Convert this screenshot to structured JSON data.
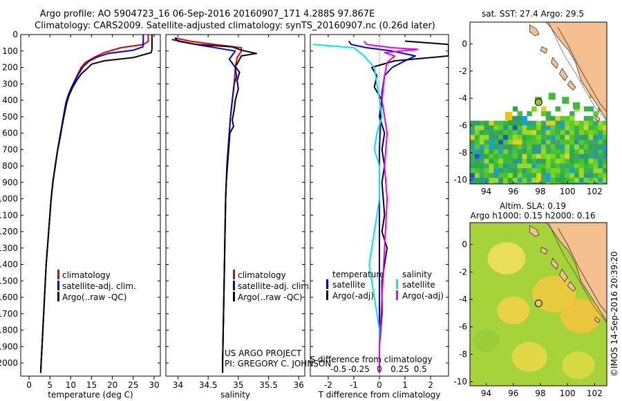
{
  "header": {
    "line1": "Argo profile: AO 5904723_16 06-Sep-2016 20160907_171 4.288S 97.867E",
    "line2": "Climatology: CARS2009. Satellite-adjusted climatology: synTS_20160907.nc (0.26d later)"
  },
  "colors": {
    "climatology": "#e00000",
    "satellite": "#0000dd",
    "argo": "#000000",
    "satellite_diff_s": "#00e5ee",
    "argo_diff_s": "#ee00ee",
    "land": "#f4c08f",
    "sla_field": "#b6dc3a"
  },
  "legends": {
    "temp": [
      "climatology",
      "satellite-adj. clim.",
      "Argo(..raw -QC)"
    ],
    "sal": [
      "climatology",
      "satellite-adj. clim.",
      "Argo(..raw -QC)"
    ],
    "diff_temperature_header": "temperature",
    "diff_salinity_header": "salinity",
    "diff_t": [
      "satellite",
      "Argo(-adj)"
    ],
    "diff_s": [
      "satellite",
      "Argo(-adj)"
    ]
  },
  "credit": {
    "line1": "US ARGO PROJECT",
    "line2": "PI: GREGORY C. JOHNSON"
  },
  "maps": {
    "sst_title": "sat. SST: 27.4 Argo: 29.5",
    "sla_title1": "Altim. SLA: 0.19",
    "sla_title2": "Argo h1000: 0.15 h2000: 0.16",
    "x_ticks": [
      "94",
      "96",
      "98",
      "100",
      "102"
    ],
    "y_ticks": [
      "0",
      "-2",
      "-4",
      "-6",
      "-8",
      "-10"
    ],
    "x_range": [
      92.8,
      102.9
    ],
    "y_range": [
      -10.3,
      1.6
    ],
    "float_position": {
      "lon": 97.867,
      "lat": -4.288
    }
  },
  "watermark": "©IMOS 14-Sep-2016 20:39:20",
  "chart_data": [
    {
      "type": "line",
      "name": "temperature_profile",
      "xlabel": "temperature (deg C)",
      "ylabel": "",
      "xlim": [
        -2,
        31.5
      ],
      "ylim": [
        2080,
        0
      ],
      "x_ticks": [
        0,
        5,
        10,
        15,
        20,
        25,
        30
      ],
      "y_ticks": [
        0,
        100,
        200,
        300,
        400,
        500,
        600,
        700,
        800,
        900,
        1000,
        1100,
        1200,
        1300,
        1400,
        1500,
        1600,
        1700,
        1800,
        1900,
        2000
      ],
      "series": [
        {
          "name": "climatology",
          "color": "#e00000",
          "points": [
            [
              28.6,
              0
            ],
            [
              28.6,
              40
            ],
            [
              27.5,
              60
            ],
            [
              22,
              80
            ],
            [
              18,
              110
            ],
            [
              15.5,
              140
            ],
            [
              13.5,
              170
            ],
            [
              12.5,
              200
            ],
            [
              11.5,
              250
            ],
            [
              10.6,
              300
            ],
            [
              9.7,
              350
            ],
            [
              9,
              400
            ],
            [
              8.3,
              500
            ],
            [
              7.6,
              600
            ],
            [
              6.9,
              700
            ],
            [
              6.3,
              800
            ],
            [
              5.7,
              900
            ],
            [
              5.3,
              1000
            ],
            [
              5,
              1100
            ],
            [
              4.7,
              1200
            ],
            [
              4.4,
              1300
            ],
            [
              4.1,
              1400
            ],
            [
              3.9,
              1500
            ],
            [
              3.7,
              1600
            ],
            [
              3.5,
              1700
            ],
            [
              3.3,
              1800
            ],
            [
              3.1,
              1900
            ],
            [
              2.9,
              2000
            ],
            [
              2.8,
              2060
            ]
          ]
        },
        {
          "name": "satellite-adj. clim.",
          "color": "#0000dd",
          "points": [
            [
              27.4,
              0
            ],
            [
              27.4,
              40
            ],
            [
              27.3,
              75
            ],
            [
              25,
              95
            ],
            [
              19,
              115
            ],
            [
              16.5,
              135
            ],
            [
              14.5,
              160
            ],
            [
              13,
              195
            ],
            [
              12,
              235
            ],
            [
              11,
              280
            ],
            [
              10.2,
              320
            ],
            [
              9.4,
              370
            ],
            [
              8.8,
              420
            ],
            [
              8.1,
              520
            ],
            [
              7.4,
              620
            ],
            [
              6.8,
              710
            ],
            [
              6.2,
              810
            ],
            [
              5.7,
              910
            ],
            [
              5.3,
              1000
            ],
            [
              5,
              1100
            ],
            [
              4.7,
              1200
            ],
            [
              4.4,
              1300
            ],
            [
              4.1,
              1400
            ],
            [
              3.9,
              1500
            ],
            [
              3.7,
              1600
            ],
            [
              3.5,
              1700
            ],
            [
              3.3,
              1800
            ],
            [
              3.1,
              1900
            ],
            [
              2.9,
              2000
            ],
            [
              2.8,
              2060
            ]
          ]
        },
        {
          "name": "Argo(..raw -QC)",
          "color": "#000000",
          "points": [
            [
              29.5,
              0
            ],
            [
              29.5,
              90
            ],
            [
              29.3,
              110
            ],
            [
              25,
              140
            ],
            [
              18,
              160
            ],
            [
              15,
              180
            ],
            [
              13.8,
              210
            ],
            [
              12.5,
              240
            ],
            [
              11.4,
              280
            ],
            [
              10.5,
              320
            ],
            [
              9.6,
              370
            ],
            [
              9,
              420
            ],
            [
              8.2,
              520
            ],
            [
              7.5,
              620
            ],
            [
              6.8,
              710
            ],
            [
              6.3,
              800
            ],
            [
              5.7,
              900
            ],
            [
              5.3,
              1000
            ],
            [
              5,
              1100
            ],
            [
              4.7,
              1200
            ],
            [
              4.4,
              1300
            ],
            [
              4.1,
              1400
            ],
            [
              3.9,
              1500
            ],
            [
              3.7,
              1600
            ],
            [
              3.5,
              1700
            ],
            [
              3.3,
              1800
            ],
            [
              3.1,
              1900
            ],
            [
              2.9,
              2000
            ],
            [
              2.8,
              2060
            ]
          ]
        }
      ]
    },
    {
      "type": "line",
      "name": "salinity_profile",
      "xlabel": "salinity",
      "xlim": [
        33.8,
        36.1
      ],
      "ylim": [
        2080,
        0
      ],
      "x_ticks": [
        34,
        34.5,
        35,
        35.5,
        36
      ],
      "series": [
        {
          "name": "climatology",
          "color": "#e00000",
          "points": [
            [
              33.95,
              20
            ],
            [
              34.2,
              40
            ],
            [
              34.6,
              60
            ],
            [
              35.05,
              80
            ],
            [
              35.05,
              100
            ],
            [
              34.98,
              140
            ],
            [
              34.95,
              200
            ],
            [
              34.93,
              300
            ],
            [
              34.9,
              400
            ],
            [
              34.87,
              500
            ],
            [
              34.85,
              600
            ],
            [
              34.83,
              700
            ],
            [
              34.81,
              800
            ],
            [
              34.8,
              900
            ],
            [
              34.79,
              1000
            ],
            [
              34.78,
              1200
            ],
            [
              34.77,
              1400
            ],
            [
              34.76,
              1600
            ],
            [
              34.75,
              1800
            ],
            [
              34.74,
              2000
            ],
            [
              34.74,
              2060
            ]
          ]
        },
        {
          "name": "satellite-adj. clim.",
          "color": "#0000dd",
          "points": [
            [
              33.9,
              30
            ],
            [
              34.3,
              60
            ],
            [
              34.7,
              85
            ],
            [
              34.95,
              100
            ],
            [
              34.85,
              150
            ],
            [
              34.95,
              200
            ],
            [
              34.97,
              260
            ],
            [
              34.93,
              300
            ],
            [
              34.9,
              400
            ],
            [
              34.87,
              500
            ],
            [
              34.85,
              600
            ],
            [
              34.83,
              700
            ],
            [
              34.81,
              800
            ],
            [
              34.8,
              900
            ],
            [
              34.79,
              1000
            ],
            [
              34.78,
              1200
            ],
            [
              34.77,
              1400
            ],
            [
              34.76,
              1600
            ],
            [
              34.75,
              1800
            ],
            [
              34.74,
              2000
            ],
            [
              34.74,
              2060
            ]
          ]
        },
        {
          "name": "Argo(..raw -QC)",
          "color": "#000000",
          "points": [
            [
              33.95,
              20
            ],
            [
              34.0,
              40
            ],
            [
              34.3,
              60
            ],
            [
              34.9,
              75
            ],
            [
              35.05,
              95
            ],
            [
              35.3,
              115
            ],
            [
              35.05,
              130
            ],
            [
              35.0,
              165
            ],
            [
              34.95,
              195
            ],
            [
              35.02,
              230
            ],
            [
              34.98,
              280
            ],
            [
              35.0,
              330
            ],
            [
              34.95,
              400
            ],
            [
              34.93,
              460
            ],
            [
              34.9,
              520
            ],
            [
              34.92,
              560
            ],
            [
              34.86,
              600
            ],
            [
              34.84,
              700
            ],
            [
              34.82,
              800
            ],
            [
              34.8,
              900
            ],
            [
              34.79,
              1000
            ],
            [
              34.78,
              1200
            ],
            [
              34.77,
              1400
            ],
            [
              34.76,
              1600
            ],
            [
              34.75,
              1800
            ],
            [
              34.74,
              2000
            ],
            [
              34.74,
              2060
            ]
          ]
        }
      ]
    },
    {
      "type": "line",
      "name": "difference_profile",
      "xlabel": "T difference from climatology",
      "xlabel_top": "S difference from climatology",
      "xlim": [
        -2.7,
        2.7
      ],
      "ylim": [
        2080,
        0
      ],
      "x_ticks": [
        -2,
        -1,
        0,
        1,
        2
      ],
      "x_ticks_s": [
        -0.5,
        -0.25,
        0,
        0.25,
        0.5
      ],
      "series": [
        {
          "name": "satellite (T)",
          "color": "#0000dd",
          "points": [
            [
              -1.2,
              40
            ],
            [
              -1.1,
              60
            ],
            [
              -0.5,
              80
            ],
            [
              0.5,
              100
            ],
            [
              1.4,
              130
            ],
            [
              1.0,
              160
            ],
            [
              0.5,
              200
            ],
            [
              0.2,
              250
            ],
            [
              0.1,
              350
            ],
            [
              0.05,
              500
            ],
            [
              0.0,
              700
            ],
            [
              0,
              1000
            ],
            [
              0,
              1500
            ],
            [
              0,
              2060
            ]
          ]
        },
        {
          "name": "Argo(-adj) (T)",
          "color": "#000000",
          "points": [
            [
              1.0,
              40
            ],
            [
              2.7,
              60
            ],
            [
              2.7,
              130
            ],
            [
              0.6,
              160
            ],
            [
              -0.3,
              200
            ],
            [
              -0.1,
              250
            ],
            [
              -0.2,
              320
            ],
            [
              0.1,
              400
            ],
            [
              0.0,
              500
            ],
            [
              0.2,
              600
            ],
            [
              0.1,
              700
            ],
            [
              0.2,
              800
            ],
            [
              0.1,
              900
            ],
            [
              0.15,
              1000
            ],
            [
              0.2,
              1100
            ],
            [
              0.1,
              1200
            ],
            [
              0.3,
              1300
            ],
            [
              0.2,
              1400
            ],
            [
              0.1,
              1500
            ],
            [
              0.1,
              1700
            ],
            [
              0.0,
              1900
            ],
            [
              0.0,
              2060
            ]
          ]
        },
        {
          "name": "satellite (S)",
          "color": "#00e5ee",
          "points": [
            [
              -2.6,
              60
            ],
            [
              -1.0,
              80
            ],
            [
              -0.6,
              130
            ],
            [
              -0.2,
              200
            ],
            [
              -0.1,
              300
            ],
            [
              0.0,
              400
            ],
            [
              0.1,
              500
            ],
            [
              -0.1,
              600
            ],
            [
              -0.2,
              700
            ],
            [
              0.0,
              800
            ],
            [
              0.0,
              1000
            ],
            [
              -0.2,
              1200
            ],
            [
              -0.4,
              1400
            ],
            [
              -0.2,
              1600
            ],
            [
              0.0,
              1800
            ],
            [
              0.0,
              2060
            ]
          ]
        },
        {
          "name": "Argo(-adj) (S)",
          "color": "#ee00ee",
          "points": [
            [
              -0.6,
              40
            ],
            [
              -0.5,
              60
            ],
            [
              0.5,
              80
            ],
            [
              1.5,
              90
            ],
            [
              0.2,
              110
            ],
            [
              0.6,
              130
            ],
            [
              0.3,
              170
            ],
            [
              0.2,
              250
            ],
            [
              0.1,
              400
            ],
            [
              0.3,
              600
            ],
            [
              0.2,
              800
            ],
            [
              0.3,
              1000
            ],
            [
              0.2,
              1300
            ],
            [
              0.1,
              1600
            ],
            [
              0.0,
              1900
            ],
            [
              0.0,
              2060
            ]
          ]
        }
      ]
    }
  ]
}
